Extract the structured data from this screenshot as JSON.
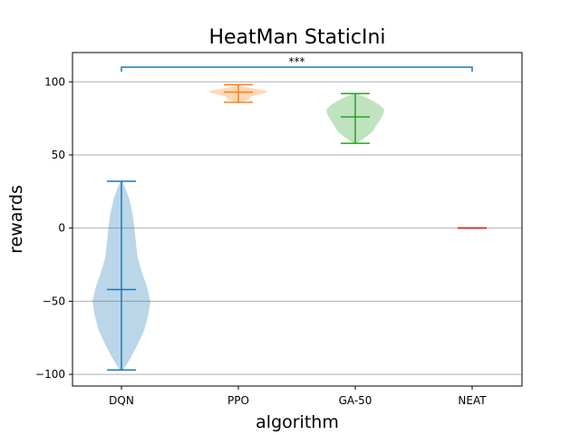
{
  "chart_data": {
    "type": "violin",
    "title": "HeatMan StaticIni",
    "xlabel": "algorithm",
    "ylabel": "rewards",
    "ylim": [
      -108,
      120
    ],
    "yticks": [
      100,
      50,
      0,
      -50,
      -100
    ],
    "grid": "horizontal",
    "categories": [
      "DQN",
      "PPO",
      "GA-50",
      "NEAT"
    ],
    "series": [
      {
        "category": "DQN",
        "color": "#1f77b4",
        "min": -97,
        "max": 32,
        "median": -42,
        "shape": [
          [
            -97,
            0.06
          ],
          [
            -90,
            0.28
          ],
          [
            -80,
            0.55
          ],
          [
            -70,
            0.78
          ],
          [
            -60,
            0.92
          ],
          [
            -50,
            1.0
          ],
          [
            -40,
            0.88
          ],
          [
            -30,
            0.7
          ],
          [
            -20,
            0.56
          ],
          [
            -10,
            0.5
          ],
          [
            0,
            0.45
          ],
          [
            10,
            0.38
          ],
          [
            20,
            0.27
          ],
          [
            27,
            0.14
          ],
          [
            32,
            0.03
          ]
        ]
      },
      {
        "category": "PPO",
        "color": "#ff7f0e",
        "min": 86,
        "max": 98,
        "median": 93,
        "shape": [
          [
            86,
            0.1
          ],
          [
            88,
            0.35
          ],
          [
            90,
            0.45
          ],
          [
            92,
            0.85
          ],
          [
            93,
            1.0
          ],
          [
            94,
            0.95
          ],
          [
            96,
            0.35
          ],
          [
            97,
            0.12
          ],
          [
            98,
            0.04
          ]
        ]
      },
      {
        "category": "GA-50",
        "color": "#2ca02c",
        "min": 58,
        "max": 92,
        "median": 76,
        "shape": [
          [
            58,
            0.05
          ],
          [
            62,
            0.35
          ],
          [
            66,
            0.6
          ],
          [
            70,
            0.72
          ],
          [
            74,
            0.86
          ],
          [
            78,
            0.97
          ],
          [
            81,
            1.0
          ],
          [
            84,
            0.85
          ],
          [
            87,
            0.6
          ],
          [
            90,
            0.3
          ],
          [
            92,
            0.05
          ]
        ]
      },
      {
        "category": "NEAT",
        "color": "#d62728",
        "min": 0,
        "max": 0,
        "median": 0,
        "shape": []
      }
    ],
    "annotation": {
      "text": "***",
      "from": "DQN",
      "to": "NEAT",
      "y": 110
    }
  }
}
